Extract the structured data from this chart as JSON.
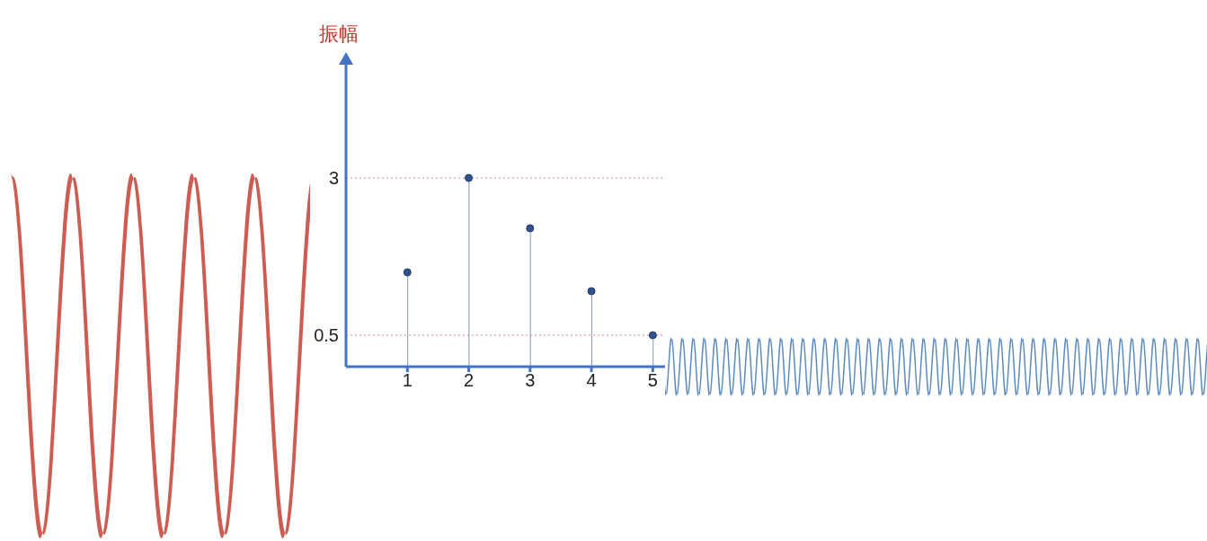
{
  "chart_data": {
    "type": "lollipop",
    "ylabel": "振幅",
    "x": [
      1,
      2,
      3,
      4,
      5
    ],
    "series": [
      {
        "color": "#2f528f",
        "values": [
          1.5,
          3,
          2.2,
          1.2,
          0.5
        ]
      }
    ],
    "xlim": [
      0,
      5.2
    ],
    "xticks": [
      1,
      2,
      3,
      4,
      5
    ],
    "ylim": [
      0,
      4.9
    ],
    "yticks": [
      0.5,
      3
    ],
    "ref_lines": [
      {
        "axis": "y",
        "value": 3,
        "color": "#d08a8a",
        "line_style": "dotted"
      },
      {
        "axis": "y",
        "value": 0.5,
        "color": "#d08a8a",
        "line_style": "dotted"
      }
    ],
    "marker": "circle"
  }
}
